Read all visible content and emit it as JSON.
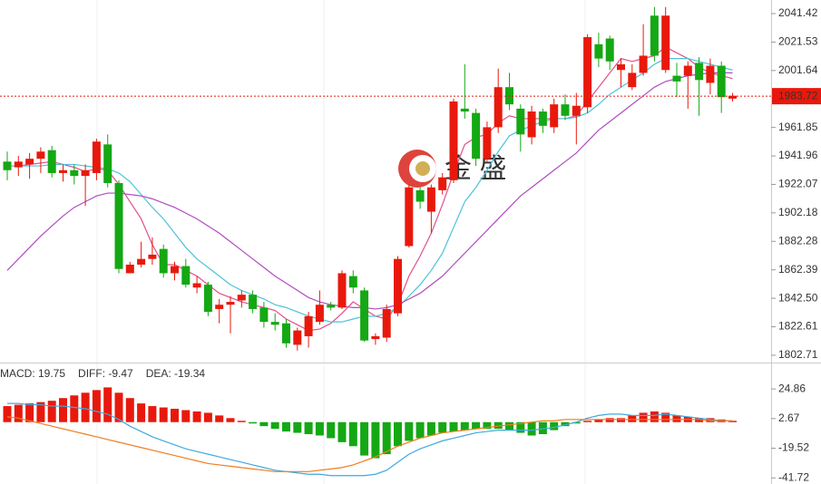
{
  "chart_data": [
    {
      "type": "candlestick",
      "open": [
        1938,
        1934,
        1936,
        1940,
        1946,
        1930,
        1932,
        1928,
        1930,
        1950,
        1923,
        1860,
        1866,
        1870,
        1877,
        1860,
        1865,
        1850,
        1852,
        1835,
        1838,
        1841,
        1845,
        1836,
        1826,
        1825,
        1810,
        1816,
        1826,
        1838,
        1836,
        1858,
        1848,
        1814,
        1815,
        1832,
        1879,
        1918,
        1903,
        1918,
        1925,
        1975,
        1972,
        1940,
        1962,
        1990,
        1975,
        1955,
        1973,
        1962,
        1978,
        1970,
        1976,
        2020,
        2024,
        2002,
        1990,
        2000,
        2040,
        2002,
        1998,
        1998,
        2007,
        1993,
        2005,
        1982
      ],
      "high": [
        1945,
        1942,
        1944,
        1948,
        1949,
        1936,
        1936,
        1936,
        1954,
        1957,
        1925,
        1868,
        1882,
        1885,
        1880,
        1868,
        1870,
        1858,
        1854,
        1842,
        1844,
        1848,
        1848,
        1840,
        1832,
        1828,
        1822,
        1833,
        1848,
        1840,
        1862,
        1862,
        1850,
        1818,
        1838,
        1872,
        1922,
        1920,
        1922,
        1930,
        1982,
        2006,
        1975,
        1966,
        2003,
        2000,
        1978,
        1977,
        1975,
        1982,
        1985,
        1986,
        2027,
        2028,
        2026,
        2010,
        2006,
        2034,
        2046,
        2046,
        2007,
        2008,
        2011,
        2010,
        2008,
        1986
      ],
      "low": [
        1925,
        1928,
        1926,
        1930,
        1927,
        1924,
        1922,
        1907,
        1925,
        1920,
        1860,
        1860,
        1864,
        1866,
        1857,
        1855,
        1850,
        1846,
        1830,
        1825,
        1818,
        1836,
        1832,
        1822,
        1820,
        1808,
        1806,
        1808,
        1824,
        1834,
        1835,
        1846,
        1812,
        1810,
        1812,
        1830,
        1878,
        1905,
        1888,
        1915,
        1923,
        1968,
        1935,
        1938,
        1958,
        1974,
        1945,
        1950,
        1958,
        1958,
        1967,
        1950,
        1972,
        2004,
        2002,
        1990,
        1988,
        1998,
        2008,
        2000,
        1983,
        1975,
        1970,
        1985,
        1972,
        1980
      ],
      "close": [
        1932,
        1938,
        1940,
        1945,
        1930,
        1932,
        1928,
        1932,
        1952,
        1923,
        1863,
        1866,
        1870,
        1873,
        1860,
        1865,
        1852,
        1853,
        1833,
        1838,
        1840,
        1845,
        1835,
        1826,
        1824,
        1811,
        1820,
        1830,
        1838,
        1836,
        1860,
        1850,
        1813,
        1816,
        1835,
        1870,
        1920,
        1910,
        1920,
        1927,
        1980,
        1973,
        1940,
        1962,
        1990,
        1978,
        1957,
        1973,
        1963,
        1978,
        1970,
        1977,
        2025,
        2010,
        2008,
        2006,
        2000,
        2012,
        2012,
        2040,
        1994,
        2005,
        1995,
        2005,
        1983,
        1984
      ],
      "up_color": "#e8190c",
      "down_color": "#14a814",
      "series": [
        {
          "color": "#e0508c",
          "values": [
            1935,
            1935,
            1936,
            1937,
            1938,
            1936,
            1934,
            1931,
            1933,
            1932,
            1922,
            1910,
            1898,
            1880,
            1866,
            1866,
            1862,
            1858,
            1852,
            1846,
            1843,
            1840,
            1838,
            1836,
            1834,
            1828,
            1824,
            1820,
            1821,
            1825,
            1832,
            1840,
            1835,
            1830,
            1828,
            1838,
            1858,
            1872,
            1888,
            1908,
            1930,
            1950,
            1955,
            1957,
            1965,
            1970,
            1968,
            1968,
            1968,
            1968,
            1968,
            1970,
            1980,
            1990,
            2000,
            2010,
            2008,
            2010,
            2012,
            2018,
            2014,
            2010,
            2004,
            2000,
            1998,
            1996
          ]
        },
        {
          "color": "#4cc3d9",
          "values": [
            1935,
            1935,
            1935,
            1935,
            1936,
            1936,
            1936,
            1935,
            1934,
            1933,
            1930,
            1924,
            1915,
            1906,
            1898,
            1888,
            1878,
            1870,
            1864,
            1858,
            1852,
            1848,
            1845,
            1842,
            1838,
            1836,
            1833,
            1830,
            1828,
            1826,
            1826,
            1828,
            1830,
            1830,
            1832,
            1836,
            1844,
            1852,
            1862,
            1874,
            1892,
            1910,
            1920,
            1932,
            1945,
            1956,
            1960,
            1963,
            1966,
            1968,
            1968,
            1969,
            1972,
            1978,
            1985,
            1990,
            1995,
            2000,
            2006,
            2010,
            2010,
            2010,
            2008,
            2006,
            2004,
            2002
          ]
        },
        {
          "color": "#b04cc0",
          "values": [
            1862,
            1870,
            1878,
            1886,
            1893,
            1900,
            1906,
            1910,
            1914,
            1916,
            1916,
            1915,
            1914,
            1912,
            1909,
            1906,
            1902,
            1898,
            1893,
            1888,
            1882,
            1876,
            1870,
            1864,
            1858,
            1853,
            1848,
            1843,
            1840,
            1838,
            1837,
            1836,
            1836,
            1835,
            1836,
            1838,
            1842,
            1846,
            1852,
            1858,
            1866,
            1874,
            1882,
            1890,
            1898,
            1906,
            1914,
            1920,
            1926,
            1932,
            1938,
            1944,
            1952,
            1960,
            1966,
            1972,
            1978,
            1984,
            1990,
            1994,
            1996,
            1998,
            1999,
            2000,
            2000,
            2000
          ]
        }
      ],
      "last_price": 1983.72,
      "ylim": [
        1797.6,
        2050.92
      ],
      "yticks": [
        2041.42,
        2021.53,
        2001.64,
        1961.85,
        1941.96,
        1922.07,
        1902.18,
        1882.28,
        1862.39,
        {
          "value": 1842.5,
          "label": "1842.50"
        },
        1822.61,
        1802.71
      ],
      "watermark": "金 盛"
    },
    {
      "type": "macd",
      "legend": [
        {
          "text": "MACD: 19.75",
          "color": "#e8190c"
        },
        {
          "text": "DIFF: -9.47",
          "color": "#3fa9e0"
        },
        {
          "text": "DEA: -19.34",
          "color": "#f07c1e"
        }
      ],
      "values": [
        12,
        13,
        14,
        15,
        16,
        18,
        20,
        22,
        24,
        26,
        22,
        18,
        14,
        12,
        11,
        10,
        9,
        8,
        7,
        5,
        3,
        1,
        -1,
        -3,
        -5,
        -7,
        -8,
        -9,
        -10,
        -12,
        -15,
        -18,
        -25,
        -27,
        -24,
        -18,
        -14,
        -12,
        -10,
        -8,
        -7,
        -6,
        -5,
        -5,
        -5,
        -6,
        -8,
        -10,
        -9,
        -6,
        -3,
        -1,
        1,
        2,
        3,
        3,
        5,
        7,
        8,
        7,
        5,
        4,
        3,
        3,
        2,
        1
      ],
      "up_color": "#e8190c",
      "down_color": "#14a814",
      "series": [
        {
          "color": "#3fa9e0",
          "values": [
            14,
            14,
            13,
            13,
            12,
            12,
            11,
            10,
            8,
            6,
            2,
            -3,
            -7,
            -11,
            -14,
            -17,
            -20,
            -22,
            -24,
            -26,
            -28,
            -30,
            -32,
            -34,
            -36,
            -37,
            -38,
            -39,
            -39,
            -40,
            -40,
            -40,
            -40,
            -39,
            -36,
            -30,
            -24,
            -20,
            -17,
            -14,
            -12,
            -10,
            -8,
            -7,
            -6,
            -6,
            -6,
            -6,
            -5,
            -4,
            -2,
            0,
            3,
            5,
            6,
            6,
            5,
            5,
            5,
            6,
            5,
            4,
            3,
            2,
            1,
            1
          ]
        },
        {
          "color": "#f07c1e",
          "values": [
            4,
            3,
            1,
            -1,
            -3,
            -5,
            -7,
            -9,
            -11,
            -13,
            -15,
            -17,
            -19,
            -21,
            -23,
            -25,
            -27,
            -29,
            -31,
            -32,
            -33,
            -34,
            -35,
            -36,
            -37,
            -37,
            -37,
            -37,
            -36,
            -35,
            -34,
            -32,
            -29,
            -26,
            -22,
            -18,
            -15,
            -12,
            -10,
            -8,
            -7,
            -6,
            -5,
            -4,
            -3,
            -2,
            -1,
            0,
            1,
            1,
            2,
            2,
            2,
            2,
            2,
            2,
            2,
            2,
            2,
            2,
            2,
            2,
            2,
            1,
            1,
            1
          ]
        }
      ],
      "ylim": [
        -46.3,
        44.6
      ],
      "yticks": [
        24.86,
        2.67,
        -19.52,
        -41.72
      ]
    }
  ]
}
